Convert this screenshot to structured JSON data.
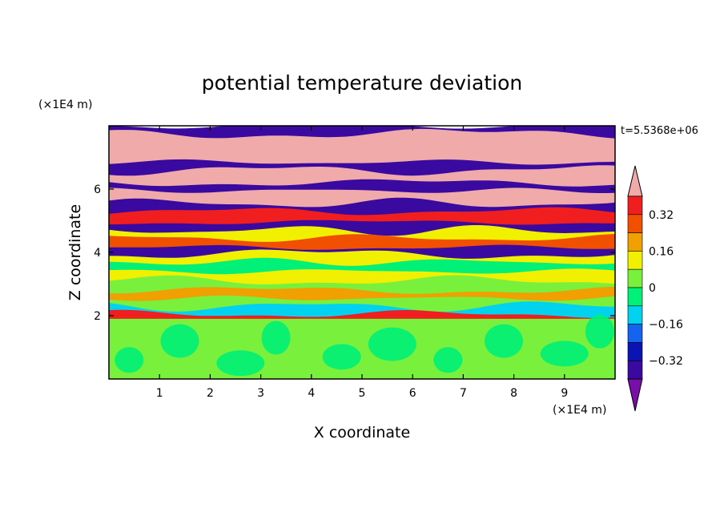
{
  "chart_data": {
    "type": "heatmap",
    "title": "potential temperature deviation",
    "xlabel": "X coordinate",
    "ylabel": "Z coordinate",
    "x_unit": "(×1E4 m)",
    "y_unit": "(×1E4 m)",
    "time_label": "t=5.5368e+06",
    "xlim": [
      0,
      10
    ],
    "ylim": [
      0,
      8
    ],
    "x_ticks": [
      "1",
      "2",
      "3",
      "4",
      "5",
      "6",
      "7",
      "8",
      "9"
    ],
    "y_ticks": [
      "2",
      "4",
      "6"
    ],
    "x_tick_values": [
      1,
      2,
      3,
      4,
      5,
      6,
      7,
      8,
      9
    ],
    "y_tick_values": [
      2,
      4,
      6
    ],
    "colorbar": {
      "levels": [
        -0.4,
        -0.32,
        -0.24,
        -0.16,
        -0.08,
        0,
        0.08,
        0.16,
        0.24,
        0.32,
        0.4
      ],
      "tick_labels": [
        "0.32",
        "0.16",
        "0",
        "−0.16",
        "−0.32"
      ],
      "tick_values": [
        0.32,
        0.16,
        0,
        -0.16,
        -0.32
      ],
      "colors": [
        "#7a0ea8",
        "#3a0aa0",
        "#0a14b4",
        "#1464f0",
        "#00d2f0",
        "#00f078",
        "#78f03c",
        "#f0f000",
        "#f0a000",
        "#f05000",
        "#f01e1e",
        "#f0aaaa"
      ]
    },
    "bands": [
      {
        "z0": 0.0,
        "z1": 1.9,
        "value": 0.02
      },
      {
        "z0": 1.9,
        "z1": 2.05,
        "value": 0.38
      },
      {
        "z0": 2.05,
        "z1": 2.3,
        "value": -0.1
      },
      {
        "z0": 2.3,
        "z1": 2.55,
        "value": 0.06
      },
      {
        "z0": 2.55,
        "z1": 2.8,
        "value": 0.22
      },
      {
        "z0": 2.8,
        "z1": 3.1,
        "value": 0.04
      },
      {
        "z0": 3.1,
        "z1": 3.4,
        "value": 0.14
      },
      {
        "z0": 3.4,
        "z1": 3.7,
        "value": -0.05
      },
      {
        "z0": 3.7,
        "z1": 3.95,
        "value": 0.1
      },
      {
        "z0": 3.95,
        "z1": 4.15,
        "value": -0.38
      },
      {
        "z0": 4.15,
        "z1": 4.45,
        "value": 0.3
      },
      {
        "z0": 4.45,
        "z1": 4.7,
        "value": 0.12
      },
      {
        "z0": 4.7,
        "z1": 4.95,
        "value": -0.34
      },
      {
        "z0": 4.95,
        "z1": 5.3,
        "value": 0.38
      },
      {
        "z0": 5.3,
        "z1": 5.55,
        "value": -0.36
      },
      {
        "z0": 5.55,
        "z1": 5.95,
        "value": 0.4
      },
      {
        "z0": 5.95,
        "z1": 6.2,
        "value": -0.4
      },
      {
        "z0": 6.2,
        "z1": 6.6,
        "value": 0.4
      },
      {
        "z0": 6.6,
        "z1": 6.85,
        "value": -0.4
      },
      {
        "z0": 6.85,
        "z1": 7.3,
        "value": 0.4
      },
      {
        "z0": 7.3,
        "z1": 7.75,
        "value": 0.4
      },
      {
        "z0": 7.75,
        "z1": 8.0,
        "value": -0.4
      }
    ]
  }
}
